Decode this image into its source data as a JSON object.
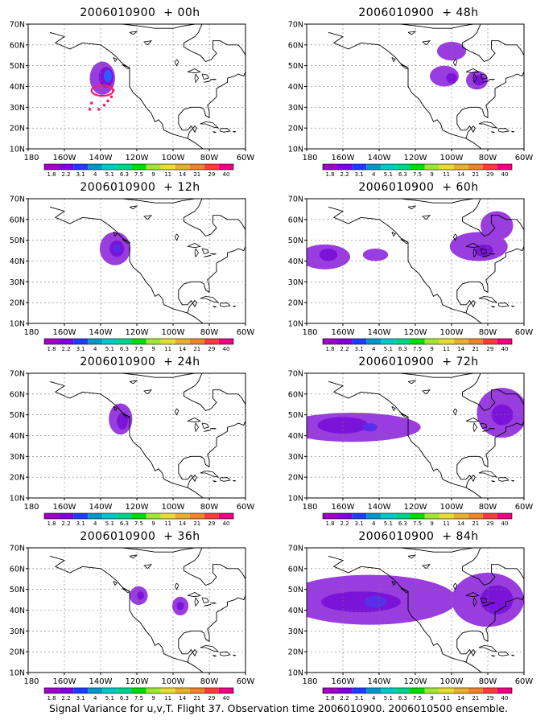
{
  "panels": [
    {
      "title": "2006010900  + 00h",
      "blobs": [
        {
          "lon": -139,
          "lat": 44,
          "rx": 7,
          "ry": 8,
          "level": 1
        },
        {
          "lon": -137,
          "lat": 44.5,
          "rx": 4,
          "ry": 5,
          "level": 2
        },
        {
          "lon": -136,
          "lat": 45,
          "rx": 2.2,
          "ry": 3,
          "level": 4
        }
      ],
      "ring": true
    },
    {
      "title": "2006010900  + 48h",
      "blobs": [
        {
          "lon": -100,
          "lat": 57,
          "rx": 8,
          "ry": 4.5,
          "level": 1
        },
        {
          "lon": -104,
          "lat": 45,
          "rx": 8,
          "ry": 5,
          "level": 1
        },
        {
          "lon": -86,
          "lat": 43,
          "rx": 6,
          "ry": 4.5,
          "level": 1
        },
        {
          "lon": -100,
          "lat": 44,
          "rx": 3,
          "ry": 2.5,
          "level": 2
        },
        {
          "lon": -85,
          "lat": 43,
          "rx": 3,
          "ry": 2.5,
          "level": 2
        }
      ]
    },
    {
      "title": "2006010900  + 12h",
      "blobs": [
        {
          "lon": -132,
          "lat": 46,
          "rx": 8.5,
          "ry": 8,
          "level": 1
        },
        {
          "lon": -131,
          "lat": 46,
          "rx": 4,
          "ry": 4,
          "level": 2
        },
        {
          "lon": -131,
          "lat": 46,
          "rx": 2,
          "ry": 2,
          "level": 3
        }
      ]
    },
    {
      "title": "2006010900  + 60h",
      "blobs": [
        {
          "lon": -170,
          "lat": 42,
          "rx": 14,
          "ry": 6,
          "level": 1
        },
        {
          "lon": -168,
          "lat": 43,
          "rx": 5,
          "ry": 3,
          "level": 2
        },
        {
          "lon": -142,
          "lat": 43,
          "rx": 7,
          "ry": 3,
          "level": 1
        },
        {
          "lon": -85,
          "lat": 47,
          "rx": 16,
          "ry": 7,
          "level": 1
        },
        {
          "lon": -75,
          "lat": 57,
          "rx": 9,
          "ry": 7,
          "level": 1
        },
        {
          "lon": -82,
          "lat": 45,
          "rx": 5,
          "ry": 3,
          "level": 2
        }
      ]
    },
    {
      "title": "2006010900  + 24h",
      "blobs": [
        {
          "lon": -129,
          "lat": 48,
          "rx": 6.5,
          "ry": 7.5,
          "level": 1
        },
        {
          "lon": -128,
          "lat": 47,
          "rx": 3,
          "ry": 4,
          "level": 2
        }
      ]
    },
    {
      "title": "2006010900  + 72h",
      "blobs": [
        {
          "lon": -155,
          "lat": 44,
          "rx": 38,
          "ry": 7,
          "level": 1
        },
        {
          "lon": -160,
          "lat": 45,
          "rx": 14,
          "ry": 4,
          "level": 2
        },
        {
          "lon": -145,
          "lat": 44,
          "rx": 4,
          "ry": 2,
          "level": 3
        },
        {
          "lon": -72,
          "lat": 51,
          "rx": 14,
          "ry": 12,
          "level": 1
        },
        {
          "lon": -72,
          "lat": 50,
          "rx": 6,
          "ry": 5,
          "level": 2
        }
      ]
    },
    {
      "title": "2006010900  + 36h",
      "blobs": [
        {
          "lon": -119,
          "lat": 47,
          "rx": 5,
          "ry": 4.5,
          "level": 1
        },
        {
          "lon": -118,
          "lat": 47,
          "rx": 2,
          "ry": 2,
          "level": 2
        },
        {
          "lon": -96,
          "lat": 42,
          "rx": 4.5,
          "ry": 4.5,
          "level": 1
        },
        {
          "lon": -96,
          "lat": 42,
          "rx": 2,
          "ry": 2,
          "level": 2
        }
      ]
    },
    {
      "title": "2006010900  + 84h",
      "blobs": [
        {
          "lon": -145,
          "lat": 45,
          "rx": 48,
          "ry": 12,
          "level": 1
        },
        {
          "lon": -150,
          "lat": 44,
          "rx": 22,
          "ry": 5,
          "level": 2
        },
        {
          "lon": -142,
          "lat": 44,
          "rx": 6,
          "ry": 3,
          "level": 3
        },
        {
          "lon": -80,
          "lat": 45,
          "rx": 20,
          "ry": 13,
          "level": 1
        },
        {
          "lon": -75,
          "lat": 45,
          "rx": 9,
          "ry": 7,
          "level": 2
        }
      ]
    }
  ],
  "lat_ticks": [
    "70N",
    "60N",
    "50N",
    "40N",
    "30N",
    "20N",
    "10N"
  ],
  "lon_ticks": [
    "180",
    "160W",
    "140W",
    "120W",
    "100W",
    "80W",
    "60W"
  ],
  "colorbar": {
    "labels": [
      "1.8",
      "2.2",
      "3.1",
      "4",
      "5.1",
      "6.3",
      "7.5",
      "9",
      "11",
      "14",
      "21",
      "29",
      "40"
    ],
    "colors": [
      "#a000c8",
      "#8200dc",
      "#1e3cff",
      "#0096c8",
      "#00c8c8",
      "#00d28c",
      "#00dc00",
      "#a0e632",
      "#e6dc32",
      "#e6af2d",
      "#f08228",
      "#fa3c3c",
      "#f00082"
    ]
  },
  "caption": "Signal Variance for u,v,T. Flight 37. Observation time 2006010900. 2006010500 ensemble."
}
